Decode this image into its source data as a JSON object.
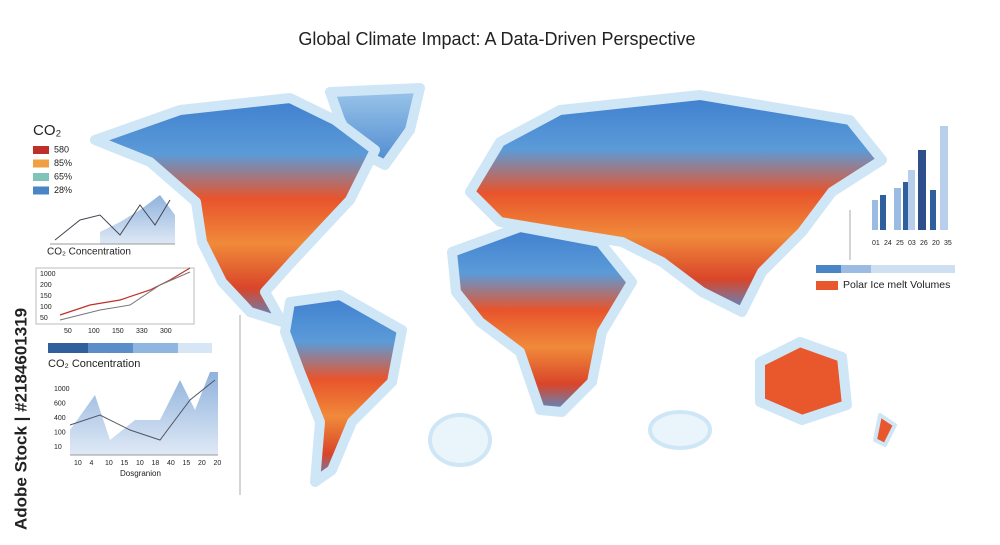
{
  "title": "Global Climate Impact: A Data-Driven Perspective",
  "legend": {
    "title": "CO₂",
    "items": [
      {
        "label": "580",
        "color": "#c0302a"
      },
      {
        "label": "85%",
        "color": "#f0a040"
      },
      {
        "label": "65%",
        "color": "#7fc4b8"
      },
      {
        "label": "28%",
        "color": "#4a86c5"
      }
    ]
  },
  "chart1": {
    "label": "CO₂ Concentration"
  },
  "chart2": {
    "yticks": [
      "1000",
      "200",
      "150",
      "100",
      "50"
    ],
    "xticks": [
      "50",
      "100",
      "150",
      "330",
      "300"
    ]
  },
  "chart3": {
    "label": "CO₂ Concentration",
    "yticks": [
      "1000",
      "600",
      "400",
      "100",
      "10"
    ],
    "xticks": [
      "10",
      "4",
      "10",
      "15",
      "10",
      "18",
      "40",
      "15",
      "20",
      "20"
    ],
    "xlabel": "Dosgranion"
  },
  "bars": {
    "xticks": [
      "01",
      "24",
      "25",
      "03",
      "26",
      "20",
      "35"
    ],
    "label": "Polar Ice melt Volumes"
  },
  "watermark": "Adobe Stock | #2184601319"
}
